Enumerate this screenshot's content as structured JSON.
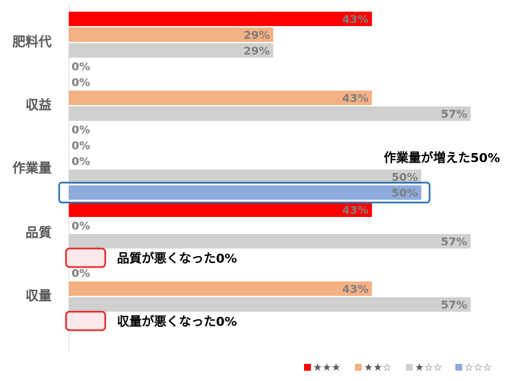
{
  "chart_data": {
    "type": "bar",
    "orientation": "horizontal",
    "categories": [
      "肥料代",
      "収益",
      "作業量",
      "品質",
      "収量"
    ],
    "series": [
      {
        "name": "★★★",
        "color": "#ff0000",
        "values": [
          43,
          0,
          0,
          43,
          0
        ]
      },
      {
        "name": "★★☆",
        "color": "#f4b183",
        "values": [
          29,
          43,
          0,
          0,
          43
        ]
      },
      {
        "name": "★☆☆",
        "color": "#d0d0d0",
        "values": [
          29,
          57,
          50,
          57,
          57
        ]
      },
      {
        "name": "☆☆☆",
        "color": "#8faadc",
        "values": [
          0,
          0,
          50,
          0,
          0
        ]
      }
    ],
    "labels": [
      [
        "43%",
        "29%",
        "29%",
        "0%"
      ],
      [
        "0%",
        "43%",
        "57%",
        "0%"
      ],
      [
        "0%",
        "0%",
        "50%",
        "50%"
      ],
      [
        "43%",
        "0%",
        "57%",
        "0%"
      ],
      [
        "0%",
        "43%",
        "57%",
        "0%"
      ]
    ],
    "xlim": [
      0,
      100
    ],
    "legend_position": "bottom-right",
    "grid": false
  },
  "annotations": [
    {
      "text": "作業量が増えた50%",
      "category": "作業量",
      "series": 3,
      "box_color": "#2e75b6"
    },
    {
      "text": "品質が悪くなった0%",
      "category": "品質",
      "series": 3,
      "box_color": "#e03030"
    },
    {
      "text": "収量が悪くなった0%",
      "category": "収量",
      "series": 3,
      "box_color": "#e03030"
    }
  ],
  "colors": {
    "category_label": "#595959",
    "value_label": "#7f7f7f",
    "axis_line": "#d9d9d9"
  }
}
